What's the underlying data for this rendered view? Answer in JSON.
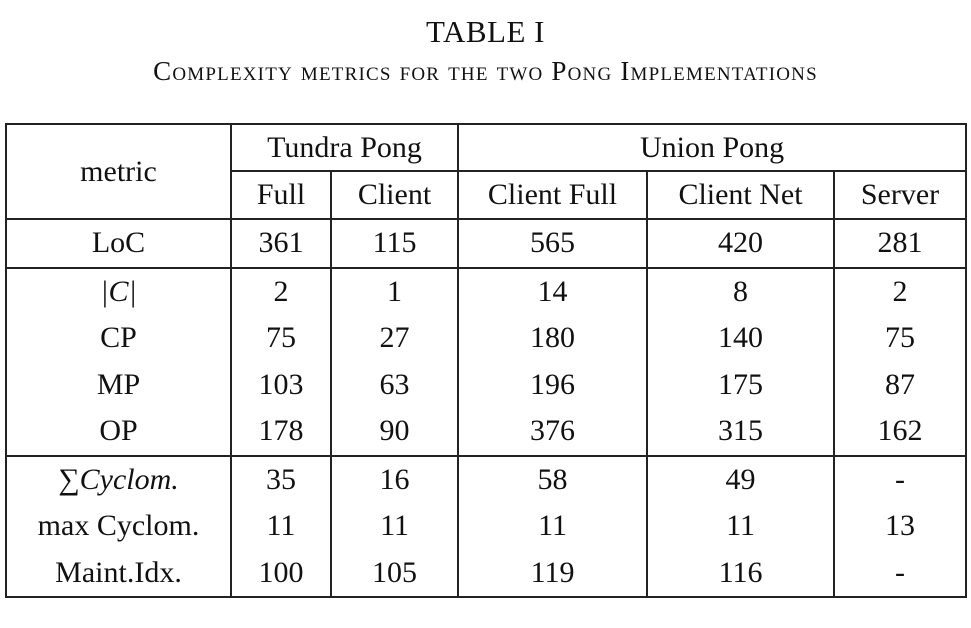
{
  "caption": {
    "label": "TABLE I",
    "title": "Complexity metrics for the two Pong Implementations"
  },
  "table": {
    "metric_header": "metric",
    "groups": [
      "Tundra Pong",
      "Union Pong"
    ],
    "subheaders": [
      "Full",
      "Client",
      "Client Full",
      "Client Net",
      "Server"
    ],
    "rows": [
      {
        "name": "LoC",
        "values": [
          "361",
          "115",
          "565",
          "420",
          "281"
        ]
      },
      {
        "name": "|C|",
        "values": [
          "2",
          "1",
          "14",
          "8",
          "2"
        ]
      },
      {
        "name": "CP",
        "values": [
          "75",
          "27",
          "180",
          "140",
          "75"
        ]
      },
      {
        "name": "MP",
        "values": [
          "103",
          "63",
          "196",
          "175",
          "87"
        ]
      },
      {
        "name": "OP",
        "values": [
          "178",
          "90",
          "376",
          "315",
          "162"
        ]
      },
      {
        "name": "∑Cyclom.",
        "values": [
          "35",
          "16",
          "58",
          "49",
          "-"
        ]
      },
      {
        "name": "max Cyclom.",
        "values": [
          "11",
          "11",
          "11",
          "11",
          "13"
        ]
      },
      {
        "name": "Maint.Idx.",
        "values": [
          "100",
          "105",
          "119",
          "116",
          "-"
        ]
      }
    ]
  }
}
